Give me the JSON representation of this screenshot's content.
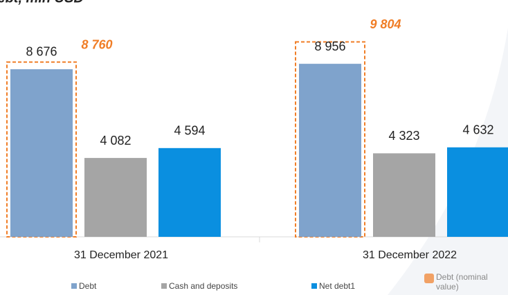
{
  "chart_data": {
    "type": "bar",
    "title": "Debt, mln USD",
    "categories": [
      "31 December 2021",
      "31 December 2022"
    ],
    "series": [
      {
        "name": "Debt",
        "color": "#7fa3cc",
        "values": [
          8676,
          8956
        ],
        "value_labels": [
          "8 676",
          "8 956"
        ]
      },
      {
        "name": "Cash and deposits",
        "color": "#a5a5a5",
        "values": [
          4082,
          4323
        ],
        "value_labels": [
          "4 082",
          "4 323"
        ]
      },
      {
        "name": "Net debt1",
        "color": "#0a8fe0",
        "values": [
          4594,
          4632
        ],
        "value_labels": [
          "4 594",
          "4 632"
        ]
      }
    ],
    "nominal": {
      "name": "Debt (nominal value)",
      "color": "#f07d26",
      "values": [
        8760,
        9804
      ],
      "value_labels": [
        "8 760",
        "9 804"
      ]
    }
  }
}
